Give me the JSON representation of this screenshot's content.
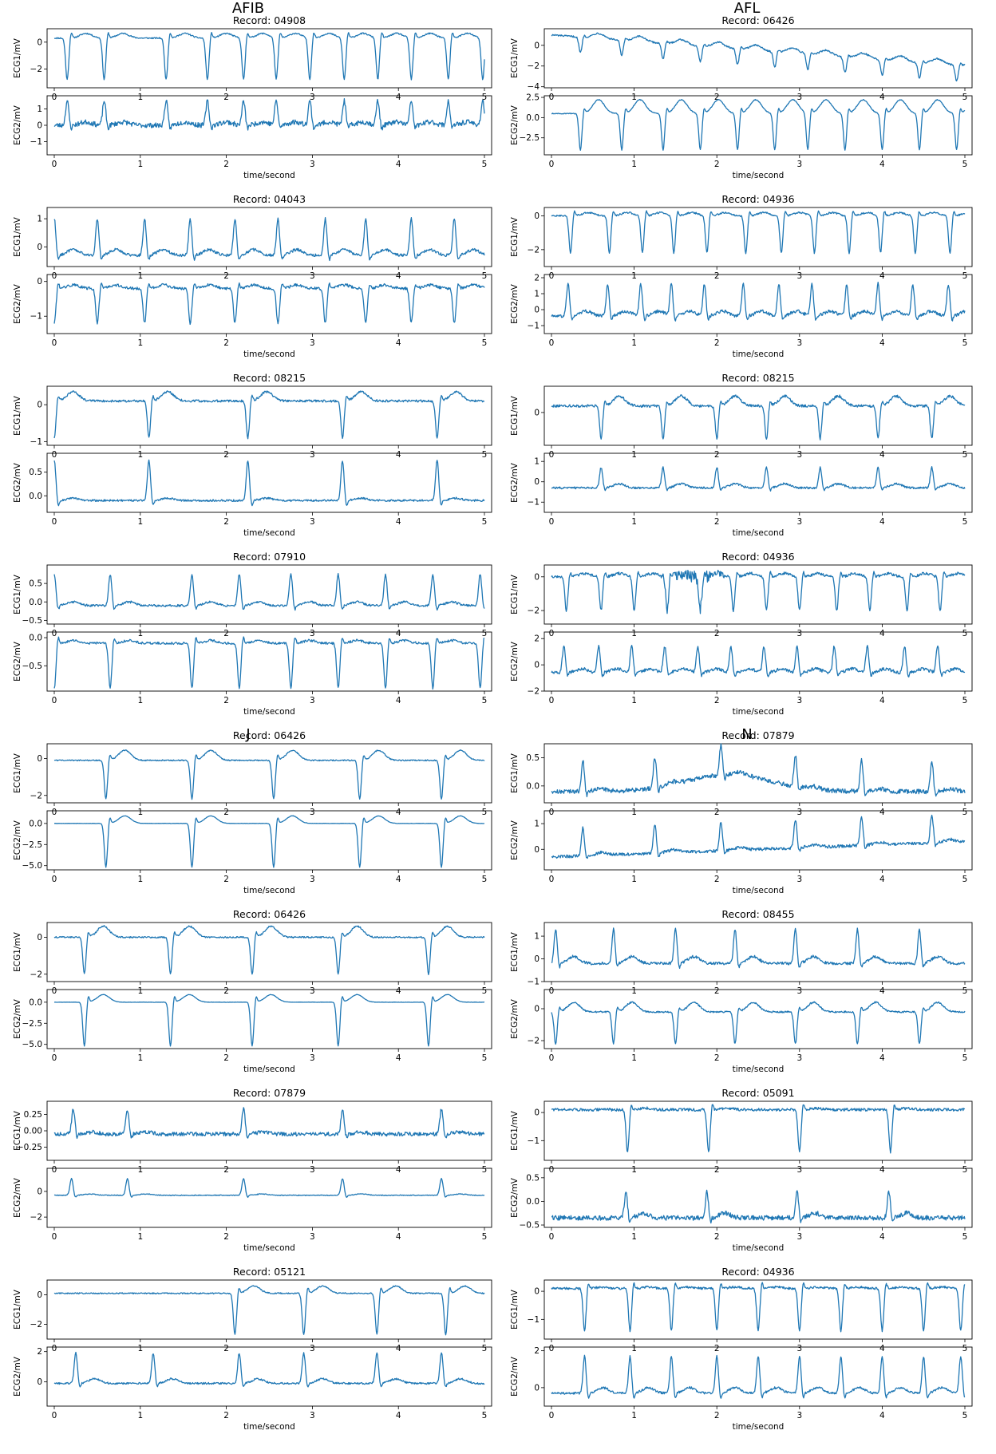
{
  "group_titles": [
    "AFIB",
    "AFL",
    "J",
    "N"
  ],
  "x_label": "time/second",
  "ch1_label": "ECG1/mV",
  "ch2_label": "ECG2/mV",
  "record_prefix": "Record: ",
  "x_ticks": [
    0,
    1,
    2,
    3,
    4,
    5
  ],
  "line_color": "#1f77b4",
  "chart_data": [
    {
      "type": "line",
      "group": "AFIB",
      "record": "04908",
      "x_range": [
        0,
        5
      ],
      "ecg1": {
        "ylim": [
          -3.4,
          1.0
        ],
        "yticks": [
          0,
          -2
        ],
        "baseline": 0.3,
        "beats": [
          0.15,
          0.58,
          1.3,
          1.78,
          2.2,
          2.58,
          2.97,
          3.37,
          3.76,
          4.15,
          4.58,
          4.98
        ],
        "qrs_amp": -3.1,
        "qrs_dir": -1,
        "t_amp": 0.35,
        "noise": 0.05
      },
      "ecg2": {
        "ylim": [
          -1.8,
          1.8
        ],
        "yticks": [
          1,
          0,
          -1
        ],
        "baseline": 0.0,
        "beats": [
          0.15,
          0.58,
          1.3,
          1.78,
          2.2,
          2.58,
          2.97,
          3.37,
          3.76,
          4.15,
          4.58,
          4.98
        ],
        "qrs_amp": 1.5,
        "qrs_dir": 1,
        "t_amp": 0.2,
        "noise": 0.15
      }
    },
    {
      "type": "line",
      "group": "AFL",
      "record": "06426",
      "x_range": [
        0,
        5
      ],
      "ecg1": {
        "ylim": [
          -4.1,
          1.6
        ],
        "yticks": [
          0,
          -2,
          -4
        ],
        "baseline": 1.0,
        "drift": -3.0,
        "beats": [
          0.35,
          0.85,
          1.35,
          1.8,
          2.25,
          2.7,
          3.1,
          3.55,
          4.0,
          4.45,
          4.9
        ],
        "qrs_amp": -1.5,
        "qrs_dir": -1,
        "t_amp": 0.5,
        "noise": 0.08
      },
      "ecg2": {
        "ylim": [
          -4.6,
          2.7
        ],
        "yticks": [
          2.5,
          0,
          -2.5
        ],
        "baseline": 0.5,
        "beats": [
          0.35,
          0.85,
          1.35,
          1.8,
          2.25,
          2.7,
          3.1,
          3.55,
          4.0,
          4.45,
          4.9
        ],
        "qrs_amp": -4.5,
        "qrs_dir": -1,
        "t_amp": 1.7,
        "noise": 0.05
      }
    },
    {
      "type": "line",
      "group": "AFIB",
      "record": "04043",
      "x_range": [
        0,
        5
      ],
      "ecg1": {
        "ylim": [
          -0.7,
          1.4
        ],
        "yticks": [
          1,
          0
        ],
        "baseline": -0.3,
        "beats": [
          0.0,
          0.5,
          1.05,
          1.58,
          2.1,
          2.6,
          3.15,
          3.62,
          4.15,
          4.65
        ],
        "qrs_amp": 1.3,
        "qrs_dir": 1,
        "t_amp": 0.2,
        "noise": 0.05
      },
      "ecg2": {
        "ylim": [
          -1.5,
          0.2
        ],
        "yticks": [
          0,
          -1
        ],
        "baseline": -0.2,
        "beats": [
          0.0,
          0.5,
          1.05,
          1.58,
          2.1,
          2.6,
          3.15,
          3.62,
          4.15,
          4.65
        ],
        "qrs_amp": -1.0,
        "qrs_dir": -1,
        "t_amp": 0.1,
        "noise": 0.04
      }
    },
    {
      "type": "line",
      "group": "AFL",
      "record": "04936",
      "x_range": [
        0,
        5
      ],
      "ecg1": {
        "ylim": [
          -3.0,
          0.5
        ],
        "yticks": [
          0,
          -2
        ],
        "baseline": 0.0,
        "beats": [
          0.23,
          0.7,
          1.1,
          1.48,
          1.88,
          2.35,
          2.78,
          3.18,
          3.6,
          3.98,
          4.4,
          4.82
        ],
        "qrs_amp": -2.2,
        "qrs_dir": -1,
        "t_amp": 0.2,
        "noise": 0.05
      },
      "ecg2": {
        "ylim": [
          -1.5,
          2.2
        ],
        "yticks": [
          2,
          1,
          0,
          -1
        ],
        "baseline": -0.4,
        "beats": [
          0.2,
          0.68,
          1.08,
          1.45,
          1.85,
          2.32,
          2.75,
          3.15,
          3.57,
          3.95,
          4.37,
          4.8
        ],
        "qrs_amp": 2.0,
        "qrs_dir": 1,
        "t_amp": 0.3,
        "noise": 0.1
      }
    },
    {
      "type": "line",
      "group": "AFIB",
      "record": "08215",
      "x_range": [
        0,
        5
      ],
      "ecg1": {
        "ylim": [
          -1.1,
          0.5
        ],
        "yticks": [
          0,
          -1
        ],
        "baseline": 0.1,
        "beats": [
          0.0,
          1.1,
          2.25,
          3.35,
          4.45
        ],
        "qrs_amp": -1.0,
        "qrs_dir": -1,
        "t_amp": 0.25,
        "noise": 0.03
      },
      "ecg2": {
        "ylim": [
          -0.35,
          0.9
        ],
        "yticks": [
          0.5,
          0.0
        ],
        "baseline": -0.1,
        "beats": [
          0.0,
          1.1,
          2.25,
          3.35,
          4.45
        ],
        "qrs_amp": 0.85,
        "qrs_dir": 1,
        "t_amp": 0.05,
        "noise": 0.02
      }
    },
    {
      "type": "line",
      "group": "AFL",
      "record": "08215",
      "x_range": [
        0,
        5
      ],
      "ecg1": {
        "ylim": [
          -1.0,
          0.8
        ],
        "yticks": [
          0
        ],
        "baseline": 0.2,
        "beats": [
          0.6,
          1.35,
          2.0,
          2.6,
          3.25,
          3.95,
          4.6
        ],
        "qrs_amp": -1.0,
        "qrs_dir": -1,
        "t_amp": 0.3,
        "noise": 0.04
      },
      "ecg2": {
        "ylim": [
          -1.5,
          1.4
        ],
        "yticks": [
          1,
          0,
          -1
        ],
        "baseline": -0.3,
        "beats": [
          0.6,
          1.35,
          2.0,
          2.6,
          3.25,
          3.95,
          4.6
        ],
        "qrs_amp": 1.0,
        "qrs_dir": 1,
        "t_amp": 0.2,
        "noise": 0.05
      }
    },
    {
      "type": "line",
      "group": "AFIB",
      "record": "07910",
      "x_range": [
        0,
        5
      ],
      "ecg1": {
        "ylim": [
          -0.6,
          1.0
        ],
        "yticks": [
          0.5,
          0.0,
          -0.5
        ],
        "baseline": -0.1,
        "beats": [
          0.0,
          0.65,
          1.6,
          2.15,
          2.75,
          3.3,
          3.85,
          4.4,
          4.95
        ],
        "qrs_amp": 0.85,
        "qrs_dir": 1,
        "t_amp": 0.1,
        "noise": 0.03
      },
      "ecg2": {
        "ylim": [
          -0.95,
          0.1
        ],
        "yticks": [
          0.0,
          -0.5
        ],
        "baseline": -0.1,
        "beats": [
          0.0,
          0.65,
          1.6,
          2.15,
          2.75,
          3.3,
          3.85,
          4.4,
          4.95
        ],
        "qrs_amp": -0.8,
        "qrs_dir": -1,
        "t_amp": 0.05,
        "noise": 0.02
      }
    },
    {
      "type": "line",
      "group": "AFL",
      "record": "04936",
      "x_range": [
        0,
        5
      ],
      "ecg1": {
        "ylim": [
          -2.8,
          0.7
        ],
        "yticks": [
          0,
          -2
        ],
        "baseline": 0.0,
        "beats": [
          0.18,
          0.6,
          1.0,
          1.4,
          1.8,
          2.2,
          2.6,
          3.0,
          3.45,
          3.85,
          4.3,
          4.7
        ],
        "qrs_amp": -2.0,
        "qrs_dir": -1,
        "t_amp": 0.2,
        "noise": 0.08,
        "burst": [
          1.3,
          2.1,
          0.4
        ]
      },
      "ecg2": {
        "ylim": [
          -2.0,
          2.5
        ],
        "yticks": [
          2,
          0,
          -2
        ],
        "baseline": -0.6,
        "beats": [
          0.15,
          0.57,
          0.97,
          1.37,
          1.77,
          2.17,
          2.57,
          2.97,
          3.42,
          3.82,
          4.27,
          4.67
        ],
        "qrs_amp": 2.0,
        "qrs_dir": 1,
        "t_amp": 0.3,
        "noise": 0.12
      }
    },
    {
      "type": "line",
      "group": "J",
      "record": "06426",
      "x_range": [
        0,
        5
      ],
      "ecg1": {
        "ylim": [
          -2.4,
          0.8
        ],
        "yticks": [
          0,
          -2
        ],
        "baseline": -0.1,
        "beats": [
          0.6,
          1.6,
          2.55,
          3.55,
          4.5
        ],
        "qrs_amp": -2.1,
        "qrs_dir": -1,
        "t_amp": 0.55,
        "noise": 0.03
      },
      "ecg2": {
        "ylim": [
          -5.5,
          1.5
        ],
        "yticks": [
          0.0,
          -2.5,
          -5.0
        ],
        "baseline": 0.0,
        "beats": [
          0.6,
          1.6,
          2.55,
          3.55,
          4.5
        ],
        "qrs_amp": -5.2,
        "qrs_dir": -1,
        "t_amp": 0.9,
        "noise": 0.02
      }
    },
    {
      "type": "line",
      "group": "N",
      "record": "07879",
      "x_range": [
        0,
        5
      ],
      "ecg1": {
        "ylim": [
          -0.3,
          0.75
        ],
        "yticks": [
          0.5,
          0.0
        ],
        "baseline": -0.1,
        "hump": [
          1.5,
          2.8,
          0.3
        ],
        "beats": [
          0.38,
          1.25,
          2.05,
          2.95,
          3.75,
          4.6
        ],
        "qrs_amp": 0.55,
        "qrs_dir": 1,
        "t_amp": 0.05,
        "noise": 0.04
      },
      "ecg2": {
        "ylim": [
          -0.8,
          1.5
        ],
        "yticks": [
          1,
          0
        ],
        "baseline": -0.3,
        "drift": 0.6,
        "beats": [
          0.38,
          1.25,
          2.05,
          2.95,
          3.75,
          4.6
        ],
        "qrs_amp": 1.1,
        "qrs_dir": 1,
        "t_amp": 0.1,
        "noise": 0.06
      }
    },
    {
      "type": "line",
      "group": "AFIB",
      "record": "06426",
      "x_range": [
        0,
        5
      ],
      "ecg1": {
        "ylim": [
          -2.4,
          0.8
        ],
        "yticks": [
          0,
          -2
        ],
        "baseline": 0.0,
        "beats": [
          0.35,
          1.35,
          2.3,
          3.3,
          4.35
        ],
        "qrs_amp": -2.0,
        "qrs_dir": -1,
        "t_amp": 0.6,
        "noise": 0.04
      },
      "ecg2": {
        "ylim": [
          -5.5,
          1.5
        ],
        "yticks": [
          0.0,
          -2.5,
          -5.0
        ],
        "baseline": 0.0,
        "beats": [
          0.35,
          1.35,
          2.3,
          3.3,
          4.35
        ],
        "qrs_amp": -5.2,
        "qrs_dir": -1,
        "t_amp": 0.9,
        "noise": 0.02
      }
    },
    {
      "type": "line",
      "group": "N",
      "record": "08455",
      "x_range": [
        0,
        5
      ],
      "ecg1": {
        "ylim": [
          -1.0,
          1.6
        ],
        "yticks": [
          1,
          0,
          -1
        ],
        "baseline": -0.2,
        "beats": [
          0.05,
          0.75,
          1.5,
          2.22,
          2.95,
          3.7,
          4.45
        ],
        "qrs_amp": 1.5,
        "qrs_dir": 1,
        "t_amp": 0.3,
        "noise": 0.06
      },
      "ecg2": {
        "ylim": [
          -2.5,
          1.2
        ],
        "yticks": [
          0,
          -2
        ],
        "baseline": -0.2,
        "beats": [
          0.05,
          0.75,
          1.5,
          2.22,
          2.95,
          3.7,
          4.45
        ],
        "qrs_amp": -2.0,
        "qrs_dir": -1,
        "t_amp": 0.6,
        "noise": 0.05
      }
    },
    {
      "type": "line",
      "group": "AFIB",
      "record": "07879",
      "x_range": [
        0,
        5
      ],
      "ecg1": {
        "ylim": [
          -0.45,
          0.45
        ],
        "yticks": [
          0.25,
          0.0,
          -0.25
        ],
        "baseline": -0.05,
        "beats": [
          0.22,
          0.85,
          2.2,
          3.35,
          4.5
        ],
        "qrs_amp": 0.38,
        "qrs_dir": 1,
        "t_amp": 0.03,
        "noise": 0.03
      },
      "ecg2": {
        "ylim": [
          -2.8,
          1.8
        ],
        "yticks": [
          0,
          -2
        ],
        "baseline": -0.3,
        "beats": [
          0.2,
          0.85,
          2.2,
          3.35,
          4.5
        ],
        "qrs_amp": 1.3,
        "qrs_dir": 1,
        "t_amp": 0.1,
        "noise": 0.03
      }
    },
    {
      "type": "line",
      "group": "N",
      "record": "05091",
      "x_range": [
        0,
        5
      ],
      "ecg1": {
        "ylim": [
          -1.7,
          0.4
        ],
        "yticks": [
          0,
          -1
        ],
        "baseline": 0.1,
        "beats": [
          0.92,
          1.9,
          3.0,
          4.1
        ],
        "qrs_amp": -1.5,
        "qrs_dir": -1,
        "t_amp": 0.05,
        "noise": 0.05
      },
      "ecg2": {
        "ylim": [
          -0.55,
          0.7
        ],
        "yticks": [
          0.5,
          0.0,
          -0.5
        ],
        "baseline": -0.35,
        "beats": [
          0.9,
          1.88,
          2.97,
          4.08
        ],
        "qrs_amp": 0.55,
        "qrs_dir": 1,
        "t_amp": 0.1,
        "noise": 0.05
      }
    },
    {
      "type": "line",
      "group": "AFIB",
      "record": "05121",
      "x_range": [
        0,
        5
      ],
      "ecg1": {
        "ylim": [
          -3.0,
          1.0
        ],
        "yticks": [
          0,
          -2
        ],
        "baseline": 0.1,
        "beats": [
          2.1,
          2.9,
          3.75,
          4.55
        ],
        "qrs_amp": -2.8,
        "qrs_dir": -1,
        "t_amp": 0.5,
        "noise": 0.04
      },
      "ecg2": {
        "ylim": [
          -1.6,
          2.3
        ],
        "yticks": [
          2,
          0
        ],
        "baseline": -0.1,
        "beats": [
          0.25,
          1.15,
          2.15,
          2.9,
          3.75,
          4.5
        ],
        "qrs_amp": 2.0,
        "qrs_dir": 1,
        "t_amp": 0.3,
        "noise": 0.06
      }
    },
    {
      "type": "line",
      "group": "N",
      "record": "04936",
      "x_range": [
        0,
        5
      ],
      "ecg1": {
        "ylim": [
          -1.7,
          0.4
        ],
        "yticks": [
          0,
          -1
        ],
        "baseline": 0.1,
        "beats": [
          0.4,
          0.95,
          1.45,
          2.0,
          2.5,
          3.0,
          3.5,
          4.0,
          4.5,
          4.95
        ],
        "qrs_amp": -1.5,
        "qrs_dir": -1,
        "t_amp": 0.05,
        "noise": 0.04
      },
      "ecg2": {
        "ylim": [
          -1.0,
          2.2
        ],
        "yticks": [
          2,
          0
        ],
        "baseline": -0.3,
        "beats": [
          0.4,
          0.95,
          1.45,
          2.0,
          2.5,
          3.0,
          3.5,
          4.0,
          4.5,
          4.95
        ],
        "qrs_amp": 2.0,
        "qrs_dir": 1,
        "t_amp": 0.3,
        "noise": 0.06
      }
    }
  ]
}
